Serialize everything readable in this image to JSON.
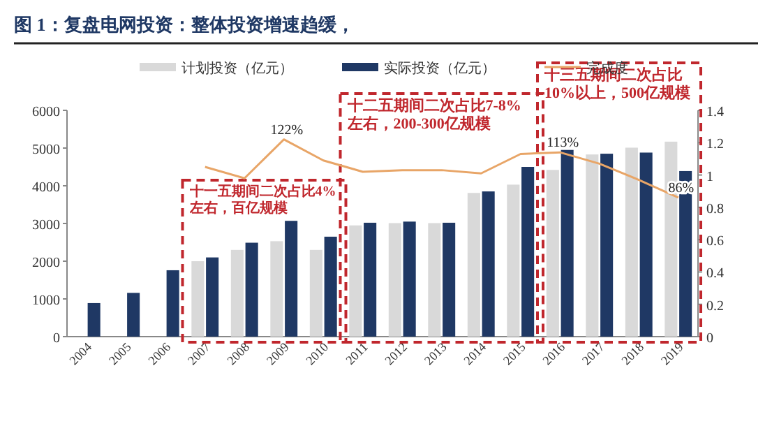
{
  "chart_data": {
    "type": "bar",
    "title": "图 1：复盘电网投资：整体投资增速趋缓，",
    "categories": [
      "2004",
      "2005",
      "2006",
      "2007",
      "2008",
      "2009",
      "2010",
      "2011",
      "2012",
      "2013",
      "2014",
      "2015",
      "2016",
      "2017",
      "2018",
      "2019"
    ],
    "series": [
      {
        "name": "计划投资（亿元）",
        "color": "#d9d9d9",
        "values": [
          null,
          null,
          null,
          2000,
          2300,
          2530,
          2300,
          2950,
          3010,
          3010,
          3810,
          4030,
          4420,
          4830,
          5010,
          5170
        ]
      },
      {
        "name": "实际投资（亿元）",
        "color": "#1f3864",
        "values": [
          890,
          1160,
          1760,
          2100,
          2490,
          3070,
          2650,
          3020,
          3050,
          3020,
          3850,
          4500,
          4950,
          4850,
          4880,
          4390
        ]
      },
      {
        "name": "完成度",
        "type": "line",
        "axis": "y2",
        "color": "#e8a567",
        "values": [
          null,
          null,
          null,
          1.05,
          0.98,
          1.22,
          1.09,
          1.02,
          1.03,
          1.03,
          1.01,
          1.13,
          1.14,
          1.07,
          0.97,
          0.86
        ]
      }
    ],
    "ylim": [
      0,
      6000
    ],
    "yticks": [
      0,
      1000,
      2000,
      3000,
      4000,
      5000,
      6000
    ],
    "y2lim": [
      0,
      1.4
    ],
    "y2ticks": [
      0,
      0.2,
      0.4,
      0.6,
      0.8,
      1,
      1.2,
      1.4
    ],
    "grid": false,
    "legend": "top",
    "annotations": [
      "122%",
      "113%",
      "86%",
      "十一五期间二次占比4%左右，百亿规模",
      "十二五期间二次占比7-8%左右，200-300亿规模",
      "十三五期间二次占比10%以上，500亿规模"
    ]
  }
}
